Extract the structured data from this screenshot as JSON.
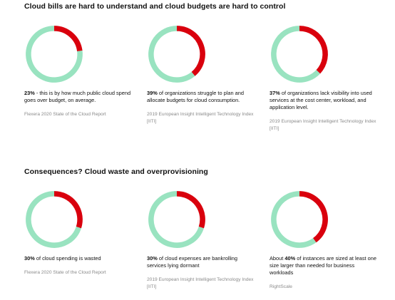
{
  "sections": [
    {
      "title": "Cloud bills are hard to understand and cloud budgets are hard to control",
      "cards": [
        {
          "bold": "23%",
          "text": " - this is by how much public cloud spend goes over budget, on average.",
          "source": "Flexera 2020 State of the Cloud Report"
        },
        {
          "bold": "39%",
          "text": " of organizations struggle to plan and allocate budgets for cloud consumption.",
          "source": "2019 European Insight Intelligent Technology Index [IITI]"
        },
        {
          "bold": "37%",
          "text": " of organizations lack visibility into used services at the cost center, workload, and application level.",
          "source": "2019 European Insight Intelligent Technology Index [IITI]"
        }
      ]
    },
    {
      "title": "Consequences? Cloud waste and overprovisioning",
      "cards": [
        {
          "bold": "30%",
          "text": " of cloud spending is wasted",
          "source": "Flexera 2020 State of the Cloud Report"
        },
        {
          "bold": "30%",
          "text": " of cloud expenses are bankrolling services lying dormant",
          "source": "2019 European Insight Intelligent Technology Index [IITI]"
        },
        {
          "prefix": "About ",
          "bold": "40%",
          "text": " of instances are sized at least one size larger than needed for business workloads",
          "source": "RightScale"
        }
      ]
    }
  ],
  "colors": {
    "highlight": "#d9000d",
    "remainder": "#99e3c0"
  },
  "chart_data": [
    {
      "type": "pie",
      "values": [
        23,
        77
      ],
      "colors": [
        "#d9000d",
        "#99e3c0"
      ]
    },
    {
      "type": "pie",
      "values": [
        39,
        61
      ],
      "colors": [
        "#d9000d",
        "#99e3c0"
      ]
    },
    {
      "type": "pie",
      "values": [
        37,
        63
      ],
      "colors": [
        "#d9000d",
        "#99e3c0"
      ]
    },
    {
      "type": "pie",
      "values": [
        30,
        70
      ],
      "colors": [
        "#d9000d",
        "#99e3c0"
      ]
    },
    {
      "type": "pie",
      "values": [
        30,
        70
      ],
      "colors": [
        "#d9000d",
        "#99e3c0"
      ]
    },
    {
      "type": "pie",
      "values": [
        40,
        60
      ],
      "colors": [
        "#d9000d",
        "#99e3c0"
      ]
    }
  ]
}
